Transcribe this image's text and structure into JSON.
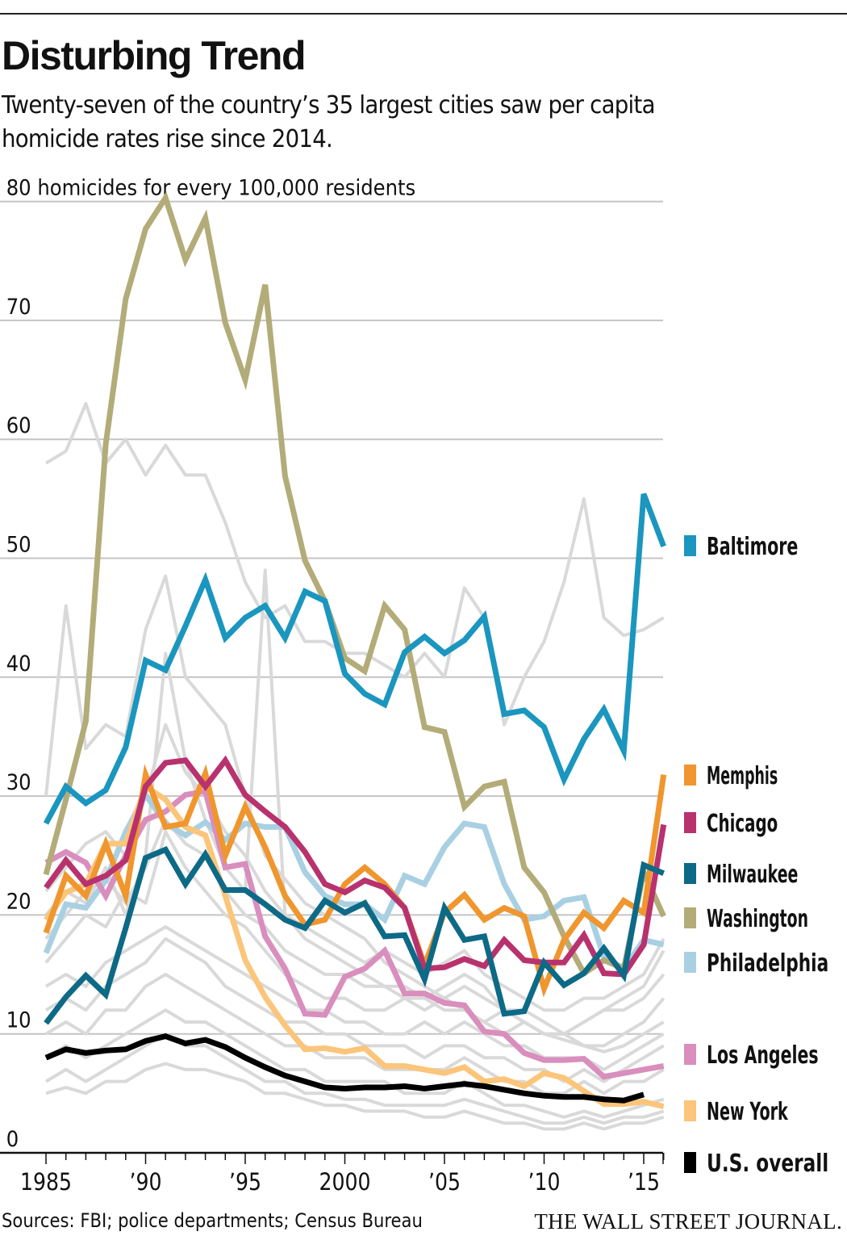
{
  "header": {
    "title": "Disturbing Trend",
    "subtitle": "Twenty-seven of the country’s 35 largest cities saw per capita homicide rates rise since 2014."
  },
  "footer": {
    "source": "Sources: FBI; police departments; Census Bureau",
    "logo": "THE WALL STREET JOURNAL."
  },
  "chart_data": {
    "type": "line",
    "title": "Disturbing Trend",
    "ylabel": "80 homicides for every 100,000 residents",
    "ylim": [
      0,
      80
    ],
    "xlim": [
      1985,
      2016
    ],
    "grid": true,
    "legend": "right",
    "yticks": [
      "80 homicides for every 100,000 residents",
      "70",
      "60",
      "50",
      "40",
      "30",
      "20",
      "10",
      "0"
    ],
    "ytick_values": [
      80,
      70,
      60,
      50,
      40,
      30,
      20,
      10,
      0
    ],
    "xticks": [
      {
        "value": 1985,
        "label": "1985"
      },
      {
        "value": 1990,
        "label": "’90"
      },
      {
        "value": 1995,
        "label": "’95"
      },
      {
        "value": 2000,
        "label": "2000"
      },
      {
        "value": 2005,
        "label": "’05"
      },
      {
        "value": 2010,
        "label": "’10"
      },
      {
        "value": 2015,
        "label": "’15"
      }
    ],
    "x": [
      1985,
      1986,
      1987,
      1988,
      1989,
      1990,
      1991,
      1992,
      1993,
      1994,
      1995,
      1996,
      1997,
      1998,
      1999,
      2000,
      2001,
      2002,
      2003,
      2004,
      2005,
      2006,
      2007,
      2008,
      2009,
      2010,
      2011,
      2012,
      2013,
      2014,
      2015,
      2016
    ],
    "other_cities_color": "#d9d9d9",
    "other_cities": [
      [
        58,
        59,
        63,
        58,
        60,
        57,
        59.5,
        57,
        57,
        53,
        48,
        45,
        46,
        43,
        43,
        42,
        42,
        41,
        40,
        42,
        40,
        47.5,
        45,
        36,
        40,
        43,
        48,
        55,
        45,
        43.5,
        44,
        45
      ],
      [
        30,
        46,
        34,
        36,
        35,
        44,
        48.5,
        40,
        38,
        36,
        30,
        25,
        23,
        21,
        20,
        19,
        18,
        16,
        15,
        14,
        13,
        12,
        11,
        10,
        11,
        10,
        9.5,
        9,
        8.5,
        9,
        10,
        11
      ],
      [
        20,
        22,
        21,
        24,
        20,
        25,
        42,
        33,
        28,
        24,
        22,
        49,
        20,
        18,
        17,
        16,
        15,
        14,
        14,
        13,
        12,
        12,
        11,
        12,
        11,
        10,
        10,
        11,
        12,
        13,
        14,
        17
      ],
      [
        16,
        18,
        20,
        19,
        22,
        21,
        27,
        24,
        22,
        20,
        19,
        17,
        15,
        14,
        13,
        13,
        12,
        12,
        13,
        12,
        13,
        14,
        13,
        12,
        11,
        10,
        10,
        9,
        9,
        10,
        11,
        13
      ],
      [
        14,
        15,
        14,
        16,
        17,
        18,
        19,
        18,
        17,
        16,
        15,
        14,
        13,
        12,
        12,
        11,
        11,
        10,
        10,
        11,
        10,
        11,
        10,
        9,
        9,
        8,
        8,
        8,
        7,
        8,
        9,
        10
      ],
      [
        12,
        13,
        12,
        14,
        15,
        16,
        18,
        17,
        16,
        14,
        13,
        12,
        11,
        11,
        10,
        10,
        9,
        9,
        9,
        8,
        9,
        9,
        8,
        8,
        7,
        7,
        6,
        7,
        6,
        7,
        8,
        9
      ],
      [
        10,
        11,
        10,
        12,
        12,
        14,
        15,
        14,
        13,
        12,
        11,
        10,
        9,
        9,
        8,
        8,
        8,
        7,
        7,
        7,
        7,
        8,
        7,
        6,
        6,
        5,
        5,
        6,
        5,
        6,
        6,
        7
      ],
      [
        8,
        9,
        8,
        9,
        10,
        11,
        12,
        11,
        11,
        10,
        9,
        8,
        7,
        7,
        6,
        6,
        6,
        6,
        5,
        5,
        5,
        6,
        5,
        4,
        4,
        3.5,
        3,
        3.5,
        3,
        3.5,
        4,
        4.5
      ],
      [
        6,
        7,
        6,
        7,
        8,
        9,
        10,
        9,
        9,
        8,
        7,
        6,
        6,
        5,
        5,
        4.5,
        4.5,
        4,
        4,
        4,
        4,
        4.5,
        4,
        3.5,
        3,
        2.5,
        2.5,
        3,
        2.5,
        3,
        3,
        3.5
      ],
      [
        5,
        5.5,
        5,
        6,
        6,
        7,
        7.5,
        7,
        7,
        6.5,
        6,
        5,
        5,
        4.5,
        4,
        4,
        3.5,
        3.5,
        3.5,
        3,
        3,
        3.5,
        3,
        2.5,
        2.5,
        2,
        2,
        2.5,
        2,
        2.5,
        2.5,
        3
      ],
      [
        18,
        20,
        22,
        23,
        21,
        24,
        28,
        26,
        25,
        22,
        20,
        19,
        17,
        16,
        15,
        15,
        14,
        14,
        13,
        13,
        14,
        15,
        14,
        12,
        12,
        11,
        10,
        11,
        12,
        12,
        13,
        15
      ],
      [
        22,
        24,
        26,
        27,
        25,
        30,
        36,
        32,
        30,
        27,
        25,
        22,
        20,
        19,
        18,
        17,
        16,
        17,
        16,
        15,
        16,
        17,
        15,
        14,
        13,
        12,
        12,
        13,
        13,
        14,
        15,
        18
      ]
    ],
    "series": [
      {
        "name": "Baltimore",
        "color": "#1a96bf",
        "values": [
          27.7,
          30.8,
          29.4,
          30.5,
          34.1,
          41.4,
          40.6,
          44.3,
          48.2,
          43.3,
          45.0,
          46.0,
          43.3,
          47.2,
          46.4,
          40.3,
          38.6,
          37.7,
          42.1,
          43.4,
          42.0,
          43.1,
          45.1,
          36.9,
          37.2,
          35.8,
          31.4,
          34.8,
          37.3,
          33.8,
          55.4,
          51.0
        ]
      },
      {
        "name": "Memphis",
        "color": "#f0962e",
        "values": [
          18.5,
          23.3,
          21.6,
          26.0,
          21.6,
          31.8,
          27.4,
          27.7,
          31.9,
          25.0,
          29.1,
          25.7,
          21.6,
          19.2,
          19.6,
          22.6,
          24.0,
          22.6,
          20.6,
          15.8,
          20.2,
          21.7,
          19.6,
          20.6,
          19.9,
          13.8,
          17.9,
          20.2,
          18.9,
          21.2,
          20.2,
          31.8
        ]
      },
      {
        "name": "Chicago",
        "color": "#b8326e",
        "values": [
          22.3,
          24.6,
          22.6,
          23.3,
          24.6,
          30.8,
          32.8,
          33.0,
          30.8,
          33.0,
          30.1,
          28.7,
          27.4,
          25.3,
          22.6,
          21.9,
          22.9,
          22.3,
          20.6,
          15.5,
          15.6,
          16.3,
          15.7,
          17.9,
          16.2,
          16.0,
          16.0,
          18.3,
          15.1,
          15.0,
          17.5,
          27.6
        ]
      },
      {
        "name": "Milwaukee",
        "color": "#0d6a87",
        "values": [
          10.9,
          13.1,
          14.9,
          13.3,
          18.9,
          24.8,
          25.5,
          22.6,
          25.1,
          22.1,
          22.1,
          20.9,
          19.6,
          18.9,
          21.2,
          20.2,
          21.0,
          18.2,
          18.3,
          14.6,
          20.6,
          17.9,
          18.2,
          11.7,
          11.9,
          16.0,
          14.1,
          15.1,
          17.2,
          14.9,
          24.2,
          23.5
        ]
      },
      {
        "name": "Washington",
        "color": "#b3ac78",
        "values": [
          23.4,
          29.7,
          36.3,
          59.6,
          71.8,
          77.7,
          80.3,
          75.1,
          78.6,
          69.8,
          65.0,
          73.0,
          56.9,
          49.8,
          46.4,
          41.6,
          40.5,
          46.0,
          44.0,
          35.8,
          35.4,
          29.1,
          30.8,
          31.2,
          24.0,
          21.9,
          18.2,
          15.1,
          16.2,
          15.5,
          23.6,
          19.9
        ]
      },
      {
        "name": "Philadelphia",
        "color": "#a9d0e2",
        "values": [
          16.8,
          20.9,
          20.6,
          22.9,
          27.0,
          30.1,
          27.7,
          26.7,
          27.8,
          26.3,
          27.7,
          27.4,
          27.4,
          23.6,
          21.6,
          20.9,
          20.9,
          19.6,
          23.3,
          22.6,
          25.7,
          27.7,
          27.4,
          22.6,
          19.6,
          19.9,
          21.2,
          21.5,
          16.5,
          15.5,
          17.9,
          17.5
        ]
      },
      {
        "name": "Los Angeles",
        "color": "#d98ebd",
        "values": [
          24.4,
          25.3,
          24.4,
          21.6,
          25.0,
          28.0,
          28.7,
          30.1,
          30.4,
          24.0,
          24.3,
          18.2,
          15.5,
          11.7,
          11.6,
          14.8,
          15.5,
          17.0,
          13.4,
          13.4,
          12.6,
          12.4,
          10.2,
          10.0,
          8.4,
          7.8,
          7.8,
          7.9,
          6.4,
          6.7,
          7.0,
          7.3
        ]
      },
      {
        "name": "New York",
        "color": "#fbc57a",
        "values": [
          19.6,
          21.9,
          22.6,
          26.0,
          26.0,
          30.8,
          29.7,
          27.4,
          26.7,
          21.6,
          16.2,
          13.1,
          10.7,
          8.7,
          8.8,
          8.5,
          8.8,
          7.3,
          7.3,
          7.0,
          6.7,
          7.2,
          6.0,
          6.2,
          5.6,
          6.7,
          6.3,
          5.2,
          4.1,
          4.1,
          4.3,
          3.9
        ]
      },
      {
        "name": "U.S. overall",
        "color": "#000000",
        "values": [
          8.0,
          8.7,
          8.4,
          8.6,
          8.7,
          9.4,
          9.8,
          9.2,
          9.5,
          8.9,
          8.0,
          7.2,
          6.5,
          6.0,
          5.5,
          5.4,
          5.5,
          5.5,
          5.6,
          5.4,
          5.6,
          5.8,
          5.6,
          5.3,
          5.0,
          4.8,
          4.7,
          4.7,
          4.5,
          4.4,
          4.9,
          null
        ]
      }
    ]
  }
}
